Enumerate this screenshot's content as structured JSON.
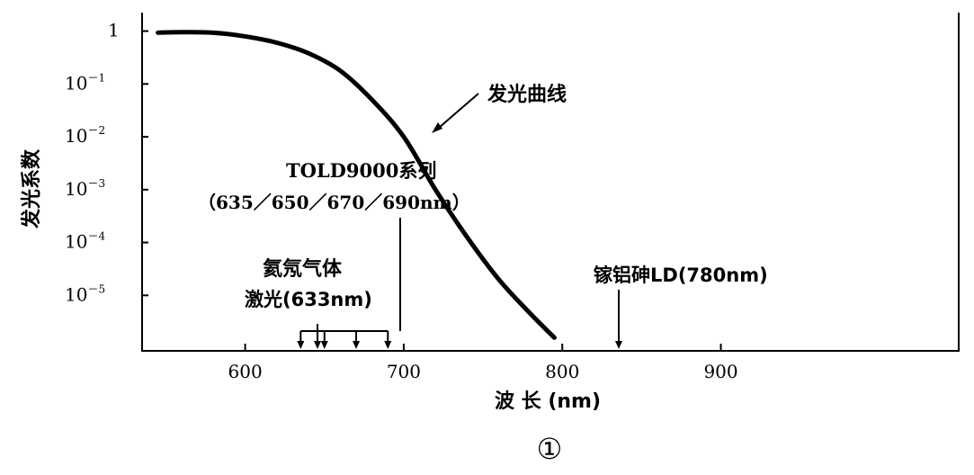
{
  "chart_data": {
    "type": "line",
    "xlabel": "波 长 (nm)",
    "ylabel": "发光系数",
    "xlim": [
      535,
      1050
    ],
    "ylim_exponent": [
      -6,
      0
    ],
    "x_ticks": [
      {
        "value": 600,
        "label": "600"
      },
      {
        "value": 700,
        "label": "700"
      },
      {
        "value": 800,
        "label": "800"
      },
      {
        "value": 900,
        "label": "900"
      }
    ],
    "y_ticks": [
      {
        "exp": 0,
        "base": "1",
        "sup": ""
      },
      {
        "exp": -1,
        "base": "10",
        "sup": "－1"
      },
      {
        "exp": -2,
        "base": "10",
        "sup": "－2"
      },
      {
        "exp": -3,
        "base": "10",
        "sup": "－3"
      },
      {
        "exp": -4,
        "base": "10",
        "sup": "－4"
      },
      {
        "exp": -5,
        "base": "10",
        "sup": "－5"
      }
    ],
    "series": [
      {
        "name": "发光曲线",
        "x": [
          545,
          560,
          580,
          600,
          620,
          640,
          660,
          680,
          700,
          720,
          740,
          760,
          780,
          795
        ],
        "log10_y": [
          -0.03,
          -0.02,
          -0.03,
          -0.1,
          -0.22,
          -0.42,
          -0.75,
          -1.3,
          -2.0,
          -3.0,
          -3.9,
          -4.7,
          -5.35,
          -5.8
        ]
      }
    ],
    "annotations": [
      {
        "id": "curve",
        "text": "发光曲线"
      },
      {
        "id": "told",
        "line1": "TOLD9000系列",
        "line2": "（635／650／670／690nm）",
        "wavelengths": [
          635,
          650,
          670,
          690
        ]
      },
      {
        "id": "hene",
        "line1": "氦氖气体",
        "line2": "激光(633nm)",
        "wavelength": 633
      },
      {
        "id": "gaalas",
        "text": "镓铝砷LD(780nm)",
        "wavelength": 780
      }
    ],
    "figure_label": "①",
    "grid": false
  }
}
